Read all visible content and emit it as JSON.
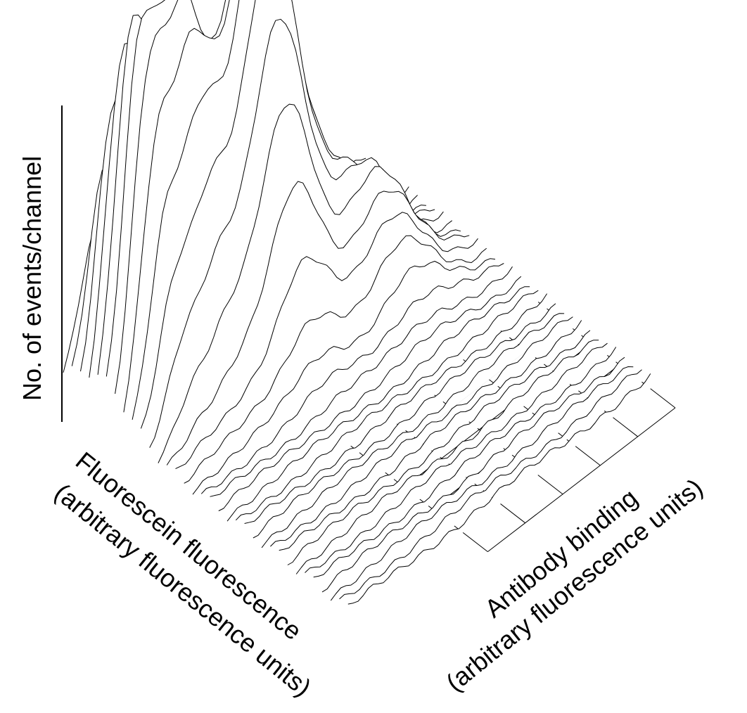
{
  "chart_data": {
    "type": "surface-3d",
    "description_axes": {
      "z_label": "No. of events/channel",
      "x_label_line1": "Fluorescein fluorescence",
      "x_label_line2": "(arbitrary fluorescence units)",
      "y_label_line1": "Antibody binding",
      "y_label_line2": "(arbitrary fluorescence units)"
    },
    "grid_divisions": 5,
    "surface_rows": 34,
    "surface_cols": 60,
    "peaks": [
      {
        "x": 0.1,
        "y": 0.12,
        "height": 0.72,
        "width": 0.05
      },
      {
        "x": 0.22,
        "y": 0.15,
        "height": 0.88,
        "width": 0.07
      },
      {
        "x": 0.42,
        "y": 0.22,
        "height": 1.0,
        "width": 0.09
      },
      {
        "x": 0.55,
        "y": 0.12,
        "height": 0.55,
        "width": 0.1
      },
      {
        "x": 0.72,
        "y": 0.3,
        "height": 0.3,
        "width": 0.1
      }
    ]
  }
}
